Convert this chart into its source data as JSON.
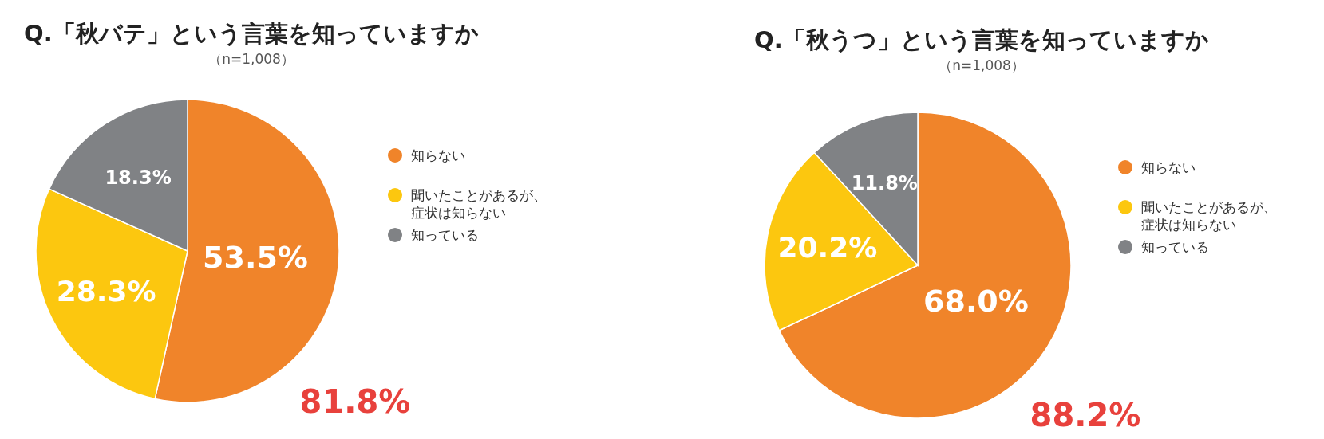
{
  "chart_data": [
    {
      "type": "pie",
      "title": "Q.「秋バテ」という言葉を知っていますか",
      "subtitle": "（n=1,008）",
      "categories": [
        "知らない",
        "聞いたことがあるが、症状は知らない",
        "知っている"
      ],
      "values": [
        53.5,
        28.3,
        18.3
      ],
      "value_labels": [
        "53.5%",
        "28.3%",
        "18.3%"
      ],
      "colors": [
        "#f0842a",
        "#fcc70f",
        "#808285"
      ],
      "legend": "right",
      "annotations": [
        "81.8%"
      ]
    },
    {
      "type": "pie",
      "title": "Q.「秋うつ」という言葉を知っていますか",
      "subtitle": "（n=1,008）",
      "categories": [
        "知らない",
        "聞いたことがあるが、症状は知らない",
        "知っている"
      ],
      "values": [
        68.0,
        20.2,
        11.8
      ],
      "value_labels": [
        "68.0%",
        "20.2%",
        "11.8%"
      ],
      "colors": [
        "#f0842a",
        "#fcc70f",
        "#808285"
      ],
      "legend": "right",
      "annotations": [
        "88.2%"
      ]
    }
  ]
}
